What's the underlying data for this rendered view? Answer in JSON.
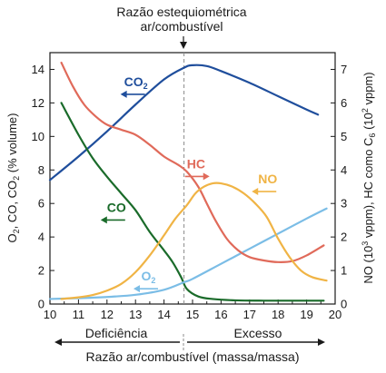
{
  "chart_data": {
    "type": "line",
    "title": "Razão estequiométrica ar/combustível",
    "title_lines": [
      "Razão estequiométrica",
      "ar/combustível"
    ],
    "xlabel": "Razão ar/combustível (massa/massa)",
    "ylabel_left": "O2, CO, CO2 (% volume)",
    "ylabel_right": "NO (10³ vppm), HC como C6 (10² vppm)",
    "xlim": [
      10,
      20
    ],
    "ylim_left": [
      0,
      15
    ],
    "ylim_right": [
      0,
      7.5
    ],
    "x_ticks": [
      10,
      11,
      12,
      13,
      14,
      15,
      16,
      17,
      18,
      19,
      20
    ],
    "y_ticks_left": [
      0,
      2,
      4,
      6,
      8,
      10,
      12,
      14
    ],
    "y_ticks_right": [
      0,
      1,
      2,
      3,
      4,
      5,
      6,
      7
    ],
    "stoichiometric_x": 14.7,
    "regions": {
      "left": "Deficiência",
      "right": "Excesso"
    },
    "grid": false,
    "series": [
      {
        "name": "CO2",
        "label_main": "CO",
        "label_sub": "2",
        "axis": "left",
        "color": "#1f4e9c",
        "arrow": "left",
        "x": [
          10.0,
          11.0,
          12.0,
          13.0,
          14.0,
          14.7,
          15.0,
          15.5,
          16.0,
          17.0,
          18.0,
          19.0,
          19.4
        ],
        "y": [
          7.4,
          8.8,
          10.3,
          11.9,
          13.4,
          14.1,
          14.25,
          14.2,
          13.9,
          13.2,
          12.4,
          11.6,
          11.3
        ]
      },
      {
        "name": "CO",
        "label_main": "CO",
        "label_sub": "",
        "axis": "left",
        "color": "#1a6b2a",
        "arrow": "left",
        "x": [
          10.4,
          11.0,
          11.5,
          12.0,
          12.5,
          13.0,
          13.5,
          14.0,
          14.3,
          14.6,
          14.8,
          15.2,
          15.7,
          16.5,
          17.5,
          18.5,
          19.6
        ],
        "y": [
          12.0,
          10.1,
          8.7,
          7.6,
          6.6,
          5.6,
          4.3,
          3.2,
          2.5,
          1.6,
          0.9,
          0.45,
          0.3,
          0.22,
          0.2,
          0.2,
          0.2
        ]
      },
      {
        "name": "O2",
        "label_main": "O",
        "label_sub": "2",
        "axis": "left",
        "color": "#7bbde6",
        "arrow": "left",
        "x": [
          10.0,
          11.0,
          12.0,
          13.0,
          14.0,
          14.7,
          15.0,
          16.0,
          17.0,
          18.0,
          19.0,
          19.7
        ],
        "y": [
          0.3,
          0.35,
          0.42,
          0.55,
          0.85,
          1.3,
          1.5,
          2.4,
          3.3,
          4.2,
          5.1,
          5.7
        ]
      },
      {
        "name": "HC",
        "label_main": "HC",
        "label_sub": "",
        "axis": "right",
        "color": "#e06a5a",
        "arrow": "right",
        "x": [
          10.4,
          10.8,
          11.2,
          11.6,
          12.0,
          12.5,
          13.0,
          13.5,
          14.0,
          14.5,
          14.8,
          15.2,
          15.5,
          15.8,
          16.2,
          16.6,
          17.0,
          17.5,
          18.0,
          18.5,
          19.0,
          19.6
        ],
        "y": [
          7.2,
          6.5,
          5.95,
          5.6,
          5.35,
          5.2,
          5.05,
          4.75,
          4.4,
          4.15,
          3.95,
          3.5,
          3.0,
          2.5,
          1.95,
          1.6,
          1.4,
          1.3,
          1.25,
          1.28,
          1.45,
          1.75
        ]
      },
      {
        "name": "NO",
        "label_main": "NO",
        "label_sub": "",
        "axis": "right",
        "color": "#f0b445",
        "arrow": "left",
        "x": [
          10.4,
          11.0,
          11.5,
          12.0,
          12.5,
          13.0,
          13.5,
          14.0,
          14.4,
          14.8,
          15.1,
          15.4,
          15.7,
          16.0,
          16.4,
          16.8,
          17.2,
          17.6,
          18.0,
          18.4,
          18.8,
          19.2,
          19.7
        ],
        "y": [
          0.15,
          0.2,
          0.27,
          0.4,
          0.6,
          0.95,
          1.45,
          2.05,
          2.55,
          2.95,
          3.3,
          3.5,
          3.6,
          3.6,
          3.5,
          3.3,
          3.0,
          2.6,
          1.95,
          1.4,
          1.0,
          0.8,
          0.7
        ]
      }
    ]
  }
}
